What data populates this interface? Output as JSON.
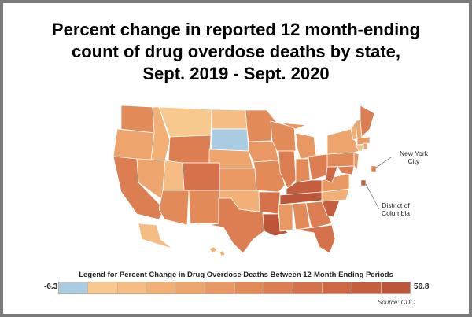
{
  "title": {
    "line1": "Percent change in reported 12 month-ending",
    "line2": "count of drug overdose deaths by state,",
    "line3": "Sept. 2019 - Sept. 2020"
  },
  "map_labels": {
    "nyc_line1": "New York",
    "nyc_line2": "City",
    "dc_line1": "District of",
    "dc_line2": "Columbia"
  },
  "legend": {
    "title": "Legend for Percent Change in Drug Overdose Deaths Between 12-Month Ending Periods",
    "min": "-6.3",
    "max": "56.8",
    "colors": [
      "#a9cce3",
      "#f7c98f",
      "#f5bd83",
      "#f2b077",
      "#eea46d",
      "#e99763",
      "#e38a59",
      "#dc7e52",
      "#d5724b",
      "#cd6744",
      "#c55e3f",
      "#bd553a"
    ]
  },
  "source": "Source: CDC"
}
